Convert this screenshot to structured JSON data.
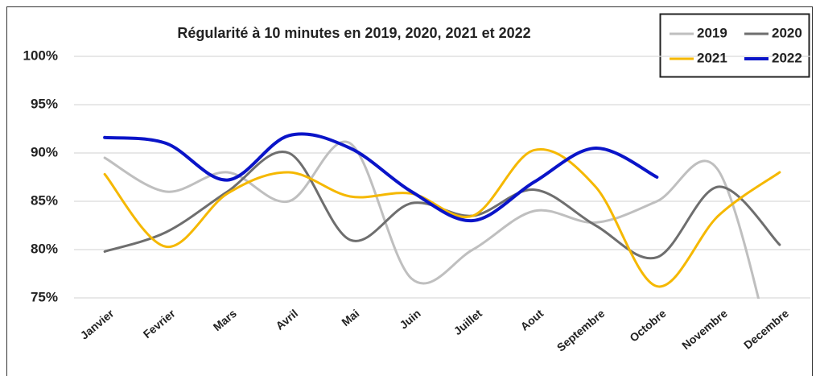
{
  "chart_data": {
    "type": "line",
    "title": "Régularité à 10 minutes en 2019, 2020, 2021 et 2022",
    "categories": [
      "Janvier",
      "Fevrier",
      "Mars",
      "Avril",
      "Mai",
      "Juin",
      "Juillet",
      "Aout",
      "Septembre",
      "Octobre",
      "Novembre",
      "Decembre"
    ],
    "series": [
      {
        "name": "2019",
        "color": "#bfbfbf",
        "values": [
          89.5,
          86,
          88,
          85,
          91,
          77,
          80,
          84,
          82.8,
          85,
          88.2,
          66
        ]
      },
      {
        "name": "2020",
        "color": "#6e6e6e",
        "values": [
          79.8,
          81.8,
          86,
          90,
          81,
          84.8,
          83.5,
          86.2,
          82.5,
          79.2,
          86.5,
          80.5
        ]
      },
      {
        "name": "2021",
        "color": "#f5b800",
        "values": [
          87.8,
          80.3,
          85.8,
          88,
          85.5,
          85.8,
          83.5,
          90.3,
          86.5,
          76.2,
          83.5,
          88
        ]
      },
      {
        "name": "2022",
        "color": "#0a14c8",
        "values": [
          91.6,
          91,
          87.2,
          91.8,
          90.5,
          86,
          83,
          87,
          90.5,
          87.5,
          null,
          null
        ]
      }
    ],
    "ylim": [
      75,
      100
    ],
    "yticks": [
      {
        "value": 75,
        "label": "75%"
      },
      {
        "value": 80,
        "label": "80%"
      },
      {
        "value": 85,
        "label": "85%"
      },
      {
        "value": 90,
        "label": "90%"
      },
      {
        "value": 95,
        "label": "95%"
      },
      {
        "value": 100,
        "label": "100%"
      }
    ],
    "grid": true,
    "legend": "top-right"
  }
}
